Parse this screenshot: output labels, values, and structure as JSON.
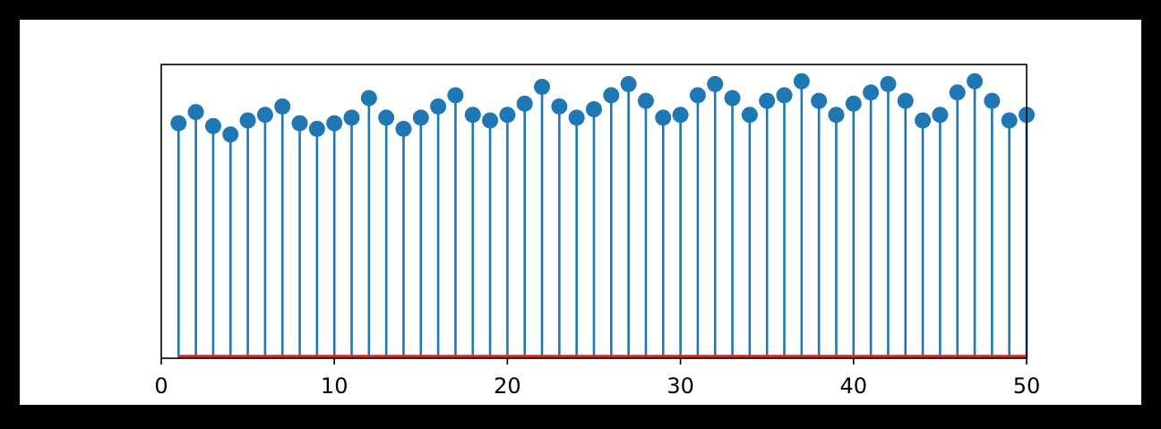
{
  "chart_data": {
    "type": "stem",
    "title": "",
    "xlabel": "",
    "ylabel": "",
    "xlim": [
      0,
      50
    ],
    "ylim": [
      0,
      1.05
    ],
    "baseline": 0,
    "x_ticks": [
      0,
      10,
      20,
      30,
      40,
      50
    ],
    "y_ticks": [],
    "grid": false,
    "legend": "none",
    "series": [
      {
        "x": [
          1,
          2,
          3,
          4,
          5,
          6,
          7,
          8,
          9,
          10,
          11,
          12,
          13,
          14,
          15,
          16,
          17,
          18,
          19,
          20,
          21,
          22,
          23,
          24,
          25,
          26,
          27,
          28,
          29,
          30,
          31,
          32,
          33,
          34,
          35,
          36,
          37,
          38,
          39,
          40,
          41,
          42,
          43,
          44,
          45,
          46,
          47,
          48,
          49,
          50
        ],
        "values": [
          0.84,
          0.88,
          0.83,
          0.8,
          0.85,
          0.87,
          0.9,
          0.84,
          0.82,
          0.84,
          0.86,
          0.93,
          0.86,
          0.82,
          0.86,
          0.9,
          0.94,
          0.87,
          0.85,
          0.87,
          0.91,
          0.97,
          0.9,
          0.86,
          0.89,
          0.94,
          0.98,
          0.92,
          0.86,
          0.87,
          0.94,
          0.98,
          0.93,
          0.87,
          0.92,
          0.94,
          0.99,
          0.92,
          0.87,
          0.91,
          0.95,
          0.98,
          0.92,
          0.85,
          0.87,
          0.95,
          0.99,
          0.92,
          0.85,
          0.87
        ]
      }
    ],
    "colors": {
      "stem": "#1f77b4",
      "marker": "#1f77b4",
      "baseline": "#d62728",
      "axes": "#000000",
      "background": "#ffffff",
      "frame": "#000000"
    }
  }
}
